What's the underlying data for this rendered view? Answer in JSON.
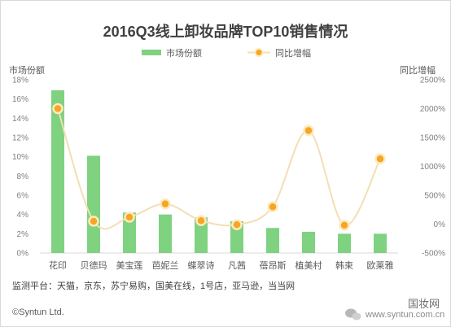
{
  "chart_data": {
    "type": "bar",
    "title": "2016Q3线上卸妆品牌TOP10销售情况",
    "categories": [
      "花印",
      "贝德玛",
      "美宝莲",
      "芭妮兰",
      "蝶翠诗",
      "凡茜",
      "蓓昂斯",
      "植美村",
      "韩束",
      "欧莱雅"
    ],
    "series": [
      {
        "name": "市场份额",
        "type": "bar",
        "axis": "left",
        "unit": "%",
        "values": [
          16.9,
          10.1,
          4.2,
          4.0,
          3.7,
          3.3,
          2.6,
          2.2,
          2.0,
          2.0
        ],
        "color": "#7fd27f"
      },
      {
        "name": "同比增幅",
        "type": "line",
        "axis": "right",
        "unit": "%",
        "values": [
          2000,
          50,
          120,
          350,
          60,
          -10,
          300,
          1620,
          -20,
          1130
        ],
        "color": "#f5a623",
        "line_color": "#f3dfb3"
      }
    ],
    "ylabel": "市场份额",
    "y2label": "同比增幅",
    "ylim": [
      0,
      18
    ],
    "y_ticks": [
      "0%",
      "2%",
      "4%",
      "6%",
      "8%",
      "10%",
      "12%",
      "14%",
      "16%",
      "18%"
    ],
    "y2lim": [
      -500,
      2500
    ],
    "y2_ticks": [
      "-500%",
      "0%",
      "500%",
      "1000%",
      "1500%",
      "2000%",
      "2500%"
    ],
    "legend_position": "top",
    "grid": false
  },
  "footer": {
    "source": "监测平台：天猫，京东，苏宁易购，国美在线，1号店，亚马逊，当当网",
    "copyright": "©Syntun Ltd.",
    "watermark_url": "www.syntun.com.cn",
    "watermark_name": "国妆网"
  }
}
